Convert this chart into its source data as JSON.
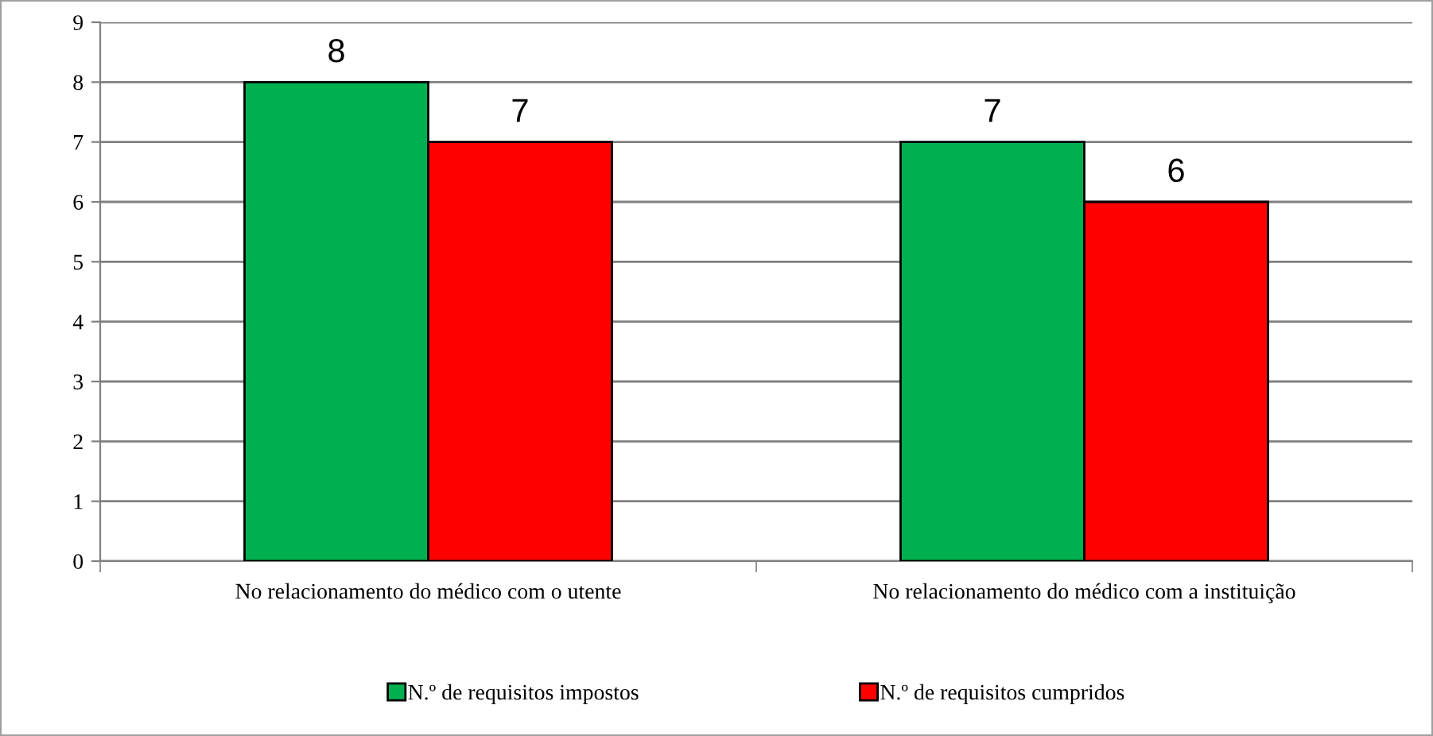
{
  "chart_data": {
    "type": "bar",
    "categories": [
      "No relacionamento do médico com o utente",
      "No relacionamento do médico com a instituição"
    ],
    "series": [
      {
        "name": "N.º de requisitos impostos",
        "color": "#00b050",
        "values": [
          8,
          7
        ]
      },
      {
        "name": "N.º de requisitos cumpridos",
        "color": "#ff0000",
        "values": [
          7,
          6
        ]
      }
    ],
    "ylim": [
      0,
      9
    ],
    "yticks": [
      0,
      1,
      2,
      3,
      4,
      5,
      6,
      7,
      8,
      9
    ],
    "grid": "y",
    "legend": "bottom",
    "data_labels": true
  }
}
